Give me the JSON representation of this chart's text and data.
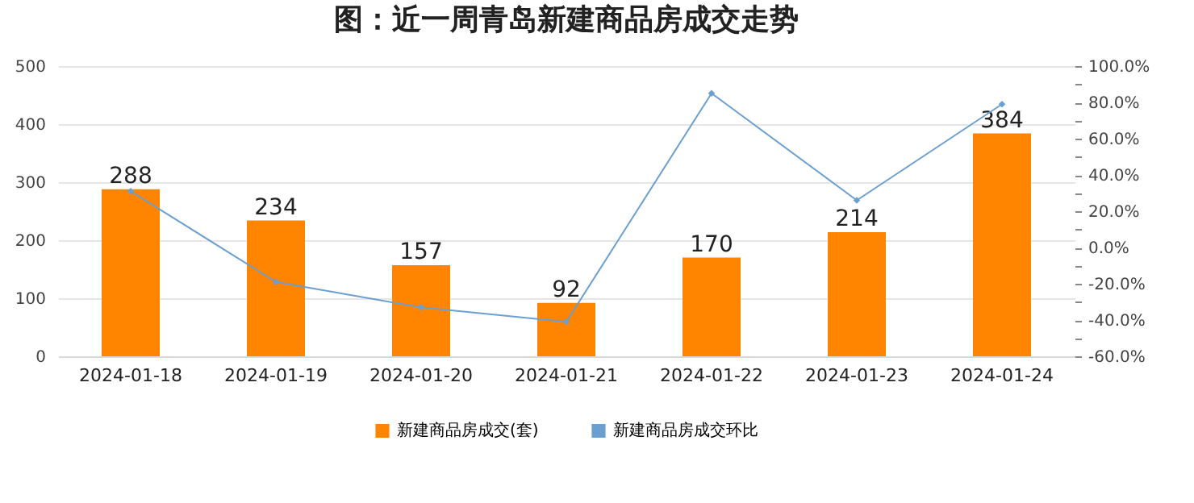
{
  "chart_data": {
    "type": "bar",
    "title": "图：近一周青岛新建商品房成交走势",
    "categories": [
      "2024-01-18",
      "2024-01-19",
      "2024-01-20",
      "2024-01-21",
      "2024-01-22",
      "2024-01-23",
      "2024-01-24"
    ],
    "series": [
      {
        "name": "新建商品房成交(套)",
        "color": "#ff8400",
        "values": [
          288,
          234,
          157,
          92,
          170,
          214,
          384
        ],
        "value_labels": [
          "288",
          "234",
          "157",
          "92",
          "170",
          "214",
          "384"
        ]
      },
      {
        "name": "新建商品房成交环比",
        "type": "line",
        "axis": "y2",
        "color": "#6a9fd0",
        "marker": "diamond",
        "values": [
          31,
          -19,
          -33,
          -41,
          85,
          26,
          79
        ]
      }
    ],
    "ylim": [
      0,
      500
    ],
    "yticks": [
      0,
      100,
      200,
      300,
      400,
      500
    ],
    "y2lim": [
      -60,
      100
    ],
    "y2ticks": [
      {
        "value": -60,
        "label": "-60.0%"
      },
      {
        "value": -50,
        "label": null
      },
      {
        "value": -40,
        "label": "-40.0%"
      },
      {
        "value": -30,
        "label": null
      },
      {
        "value": -20,
        "label": "-20.0%"
      },
      {
        "value": -10,
        "label": null
      },
      {
        "value": 0,
        "label": "0.0%"
      },
      {
        "value": 10,
        "label": null
      },
      {
        "value": 20,
        "label": "20.0%"
      },
      {
        "value": 30,
        "label": null
      },
      {
        "value": 40,
        "label": "40.0%"
      },
      {
        "value": 50,
        "label": null
      },
      {
        "value": 60,
        "label": "60.0%"
      },
      {
        "value": 70,
        "label": null
      },
      {
        "value": 80,
        "label": "80.0%"
      },
      {
        "value": 90,
        "label": null
      },
      {
        "value": 100,
        "label": "100.0%"
      }
    ],
    "grid": "y",
    "legend": "bottom"
  }
}
